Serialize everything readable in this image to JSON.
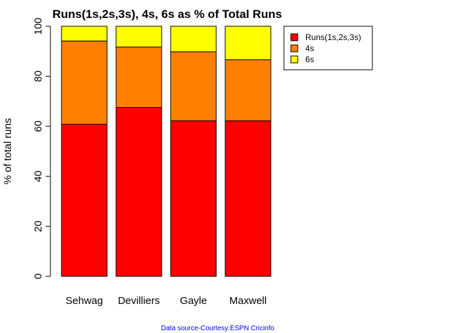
{
  "chart_data": {
    "type": "bar",
    "stacked": true,
    "title": "Runs(1s,2s,3s), 4s, 6s as % of Total Runs",
    "xlabel": "",
    "ylabel": "% of total runs",
    "ylim": [
      0,
      100
    ],
    "yticks": [
      "0",
      "20",
      "40",
      "60",
      "80",
      "100"
    ],
    "categories": [
      "Sehwag",
      "Devilliers",
      "Gayle",
      "Maxwell"
    ],
    "series": [
      {
        "name": "Runs(1s,2s,3s)",
        "color": "#ff0000",
        "values": [
          60.8,
          67.5,
          62.2,
          62.2
        ]
      },
      {
        "name": "4s",
        "color": "#ff7f00",
        "values": [
          33.3,
          24.2,
          27.6,
          24.4
        ]
      },
      {
        "name": "6s",
        "color": "#ffff00",
        "values": [
          5.9,
          8.3,
          10.2,
          13.4
        ]
      }
    ],
    "legend_position": "top-right",
    "grid": false,
    "source_note": "Data source-Courtesy:ESPN Cricinfo"
  }
}
